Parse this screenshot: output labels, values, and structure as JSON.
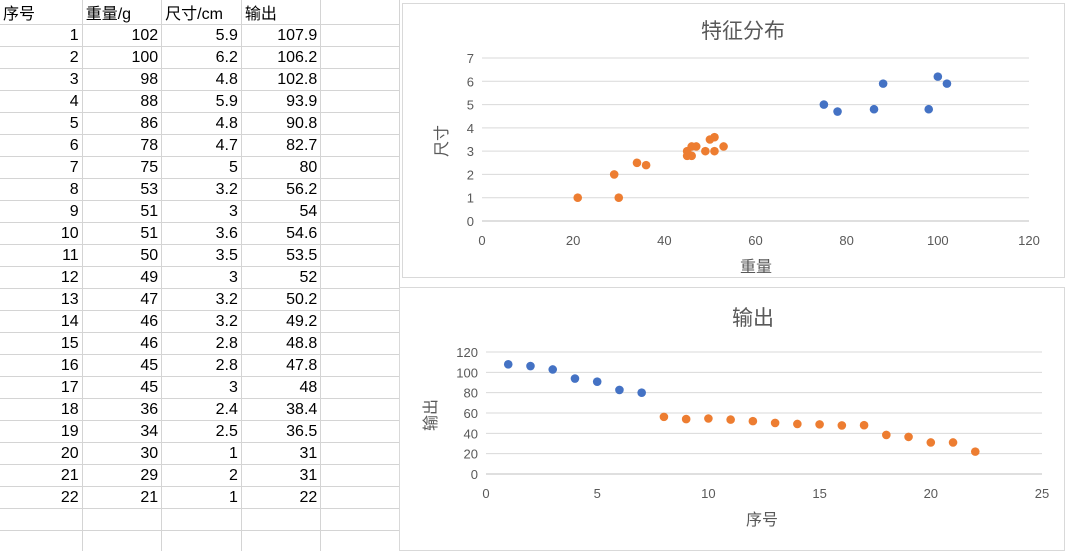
{
  "sheet": {
    "headers": [
      "序号",
      "重量/g",
      "尺寸/cm",
      "输出"
    ],
    "rows": [
      [
        "1",
        "102",
        "5.9",
        "107.9"
      ],
      [
        "2",
        "100",
        "6.2",
        "106.2"
      ],
      [
        "3",
        "98",
        "4.8",
        "102.8"
      ],
      [
        "4",
        "88",
        "5.9",
        "93.9"
      ],
      [
        "5",
        "86",
        "4.8",
        "90.8"
      ],
      [
        "6",
        "78",
        "4.7",
        "82.7"
      ],
      [
        "7",
        "75",
        "5",
        "80"
      ],
      [
        "8",
        "53",
        "3.2",
        "56.2"
      ],
      [
        "9",
        "51",
        "3",
        "54"
      ],
      [
        "10",
        "51",
        "3.6",
        "54.6"
      ],
      [
        "11",
        "50",
        "3.5",
        "53.5"
      ],
      [
        "12",
        "49",
        "3",
        "52"
      ],
      [
        "13",
        "47",
        "3.2",
        "50.2"
      ],
      [
        "14",
        "46",
        "3.2",
        "49.2"
      ],
      [
        "15",
        "46",
        "2.8",
        "48.8"
      ],
      [
        "16",
        "45",
        "2.8",
        "47.8"
      ],
      [
        "17",
        "45",
        "3",
        "48"
      ],
      [
        "18",
        "36",
        "2.4",
        "38.4"
      ],
      [
        "19",
        "34",
        "2.5",
        "36.5"
      ],
      [
        "20",
        "30",
        "1",
        "31"
      ],
      [
        "21",
        "29",
        "2",
        "31"
      ],
      [
        "22",
        "21",
        "1",
        "22"
      ]
    ]
  },
  "colors": {
    "blue": "#4472C4",
    "orange": "#ED7D31",
    "gridline": "#d9d9d9",
    "axis_text": "#595959"
  },
  "chart_data": [
    {
      "type": "scatter",
      "title": "特征分布",
      "xlabel": "重量",
      "ylabel": "尺寸",
      "xlim": [
        0,
        120
      ],
      "ylim": [
        0,
        7
      ],
      "xticks": [
        0,
        20,
        40,
        60,
        80,
        100,
        120
      ],
      "yticks": [
        0,
        1,
        2,
        3,
        4,
        5,
        6,
        7
      ],
      "grid": "horizontal",
      "series": [
        {
          "color": "blue",
          "points": [
            [
              102,
              5.9
            ],
            [
              100,
              6.2
            ],
            [
              98,
              4.8
            ],
            [
              88,
              5.9
            ],
            [
              86,
              4.8
            ],
            [
              78,
              4.7
            ],
            [
              75,
              5
            ]
          ]
        },
        {
          "color": "orange",
          "points": [
            [
              53,
              3.2
            ],
            [
              51,
              3
            ],
            [
              51,
              3.6
            ],
            [
              50,
              3.5
            ],
            [
              49,
              3
            ],
            [
              47,
              3.2
            ],
            [
              46,
              3.2
            ],
            [
              46,
              2.8
            ],
            [
              45,
              2.8
            ],
            [
              45,
              3
            ],
            [
              36,
              2.4
            ],
            [
              34,
              2.5
            ],
            [
              30,
              1
            ],
            [
              29,
              2
            ],
            [
              21,
              1
            ]
          ]
        }
      ]
    },
    {
      "type": "scatter",
      "title": "输出",
      "xlabel": "序号",
      "ylabel": "输出",
      "xlim": [
        0,
        25
      ],
      "ylim": [
        0,
        120
      ],
      "xticks": [
        0,
        5,
        10,
        15,
        20,
        25
      ],
      "yticks": [
        0,
        20,
        40,
        60,
        80,
        100,
        120
      ],
      "grid": "horizontal",
      "series": [
        {
          "color": "blue",
          "points": [
            [
              1,
              107.9
            ],
            [
              2,
              106.2
            ],
            [
              3,
              102.8
            ],
            [
              4,
              93.9
            ],
            [
              5,
              90.8
            ],
            [
              6,
              82.7
            ],
            [
              7,
              80
            ]
          ]
        },
        {
          "color": "orange",
          "points": [
            [
              8,
              56.2
            ],
            [
              9,
              54
            ],
            [
              10,
              54.6
            ],
            [
              11,
              53.5
            ],
            [
              12,
              52
            ],
            [
              13,
              50.2
            ],
            [
              14,
              49.2
            ],
            [
              15,
              48.8
            ],
            [
              16,
              47.8
            ],
            [
              17,
              48
            ],
            [
              18,
              38.4
            ],
            [
              19,
              36.5
            ],
            [
              20,
              31
            ],
            [
              21,
              31
            ],
            [
              22,
              22
            ]
          ]
        }
      ]
    }
  ]
}
